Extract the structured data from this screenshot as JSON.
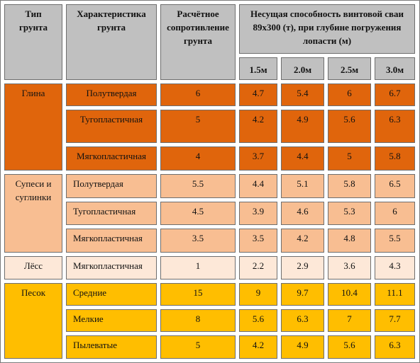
{
  "colors": {
    "header": "#c0c0c0",
    "clay": "#e0650c",
    "loam": "#f8be92",
    "loess": "#fde8d8",
    "sand": "#ffbe00"
  },
  "headers": {
    "soil_type": "Тип грунта",
    "characteristic": "Характеристика грунта",
    "resistance": "Расчётное сопротивление грунта",
    "capacity": "Несущая способность винтовой сваи 89х300 (т), при глубине погружения лопасти (м)",
    "depths": [
      "1.5м",
      "2.0м",
      "2.5м",
      "3.0м"
    ]
  },
  "groups": [
    {
      "name": "Глина",
      "rows": [
        {
          "characteristic": "Полутвердая",
          "resistance": "6",
          "values": [
            "4.7",
            "5.4",
            "6",
            "6.7"
          ]
        },
        {
          "characteristic": "Тугопластичная",
          "resistance": "5",
          "values": [
            "4.2",
            "4.9",
            "5.6",
            "6.3"
          ]
        },
        {
          "characteristic": "Мягкопластичная",
          "resistance": "4",
          "values": [
            "3.7",
            "4.4",
            "5",
            "5.8"
          ]
        }
      ]
    },
    {
      "name": "Супеси и суглинки",
      "rows": [
        {
          "characteristic": "Полутвердая",
          "resistance": "5.5",
          "values": [
            "4.4",
            "5.1",
            "5.8",
            "6.5"
          ]
        },
        {
          "characteristic": "Тугопластичная",
          "resistance": "4.5",
          "values": [
            "3.9",
            "4.6",
            "5.3",
            "6"
          ]
        },
        {
          "characteristic": "Мягкопластичная",
          "resistance": "3.5",
          "values": [
            "3.5",
            "4.2",
            "4.8",
            "5.5"
          ]
        }
      ]
    },
    {
      "name": "Лёсс",
      "rows": [
        {
          "characteristic": "Мягкопластичная",
          "resistance": "1",
          "values": [
            "2.2",
            "2.9",
            "3.6",
            "4.3"
          ]
        }
      ]
    },
    {
      "name": "Песок",
      "rows": [
        {
          "characteristic": "Средние",
          "resistance": "15",
          "values": [
            "9",
            "9.7",
            "10.4",
            "11.1"
          ]
        },
        {
          "characteristic": "Мелкие",
          "resistance": "8",
          "values": [
            "5.6",
            "6.3",
            "7",
            "7.7"
          ]
        },
        {
          "characteristic": "Пылеватые",
          "resistance": "5",
          "values": [
            "4.2",
            "4.9",
            "5.6",
            "6.3"
          ]
        }
      ]
    }
  ]
}
